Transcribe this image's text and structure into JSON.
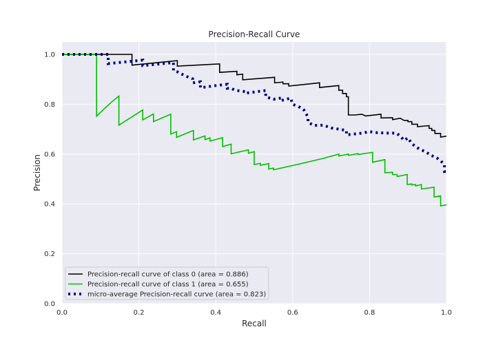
{
  "chart_data": {
    "type": "line",
    "title": "Precision-Recall Curve",
    "xlabel": "Recall",
    "ylabel": "Precision",
    "xlim": [
      0.0,
      1.0
    ],
    "ylim": [
      0.0,
      1.05
    ],
    "xticks": [
      "0.0",
      "0.2",
      "0.4",
      "0.6",
      "0.8",
      "1.0"
    ],
    "yticks": [
      "0.0",
      "0.2",
      "0.4",
      "0.6",
      "0.8",
      "1.0"
    ],
    "grid": true,
    "legend_position": "lower-left",
    "series": [
      {
        "name": "Precision-recall curve of class 0 (area = 0.886)",
        "color": "#000000",
        "style": "solid",
        "points": [
          [
            0,
            1.0
          ],
          [
            0.182,
            1.0
          ],
          [
            0.182,
            0.957
          ],
          [
            0.3,
            0.975
          ],
          [
            0.3,
            0.953
          ],
          [
            0.41,
            0.962
          ],
          [
            0.41,
            0.928
          ],
          [
            0.455,
            0.932
          ],
          [
            0.455,
            0.918
          ],
          [
            0.47,
            0.921
          ],
          [
            0.47,
            0.898
          ],
          [
            0.553,
            0.908
          ],
          [
            0.553,
            0.886
          ],
          [
            0.575,
            0.889
          ],
          [
            0.575,
            0.882
          ],
          [
            0.59,
            0.882
          ],
          [
            0.59,
            0.873
          ],
          [
            0.67,
            0.886
          ],
          [
            0.67,
            0.867
          ],
          [
            0.72,
            0.875
          ],
          [
            0.72,
            0.856
          ],
          [
            0.73,
            0.856
          ],
          [
            0.73,
            0.843
          ],
          [
            0.74,
            0.843
          ],
          [
            0.74,
            0.83
          ],
          [
            0.745,
            0.83
          ],
          [
            0.745,
            0.757
          ],
          [
            0.762,
            0.757
          ],
          [
            0.78,
            0.76
          ],
          [
            0.79,
            0.753
          ],
          [
            0.83,
            0.76
          ],
          [
            0.83,
            0.745
          ],
          [
            0.86,
            0.746
          ],
          [
            0.86,
            0.738
          ],
          [
            0.88,
            0.744
          ],
          [
            0.89,
            0.735
          ],
          [
            0.9,
            0.735
          ],
          [
            0.9,
            0.73
          ],
          [
            0.91,
            0.73
          ],
          [
            0.91,
            0.72
          ],
          [
            0.925,
            0.72
          ],
          [
            0.925,
            0.71
          ],
          [
            0.955,
            0.714
          ],
          [
            0.955,
            0.703
          ],
          [
            0.962,
            0.703
          ],
          [
            0.962,
            0.695
          ],
          [
            0.97,
            0.695
          ],
          [
            0.97,
            0.683
          ],
          [
            0.985,
            0.683
          ],
          [
            0.985,
            0.668
          ],
          [
            1.0,
            0.672
          ]
        ]
      },
      {
        "name": "Precision-recall curve of class 1 (area = 0.655)",
        "color": "#00bf00",
        "style": "solid",
        "points": [
          [
            0,
            1.0
          ],
          [
            0.09,
            1.0
          ],
          [
            0.09,
            0.752
          ],
          [
            0.11,
            0.782
          ],
          [
            0.13,
            0.81
          ],
          [
            0.148,
            0.833
          ],
          [
            0.148,
            0.716
          ],
          [
            0.21,
            0.777
          ],
          [
            0.21,
            0.737
          ],
          [
            0.238,
            0.761
          ],
          [
            0.238,
            0.73
          ],
          [
            0.283,
            0.76
          ],
          [
            0.283,
            0.68
          ],
          [
            0.298,
            0.69
          ],
          [
            0.298,
            0.667
          ],
          [
            0.342,
            0.695
          ],
          [
            0.342,
            0.657
          ],
          [
            0.372,
            0.673
          ],
          [
            0.372,
            0.658
          ],
          [
            0.385,
            0.665
          ],
          [
            0.385,
            0.652
          ],
          [
            0.418,
            0.666
          ],
          [
            0.418,
            0.63
          ],
          [
            0.44,
            0.64
          ],
          [
            0.44,
            0.601
          ],
          [
            0.485,
            0.617
          ],
          [
            0.485,
            0.603
          ],
          [
            0.5,
            0.61
          ],
          [
            0.5,
            0.558
          ],
          [
            0.516,
            0.563
          ],
          [
            0.516,
            0.555
          ],
          [
            0.538,
            0.562
          ],
          [
            0.538,
            0.54
          ],
          [
            0.55,
            0.544
          ],
          [
            0.55,
            0.537
          ],
          [
            0.62,
            0.561
          ],
          [
            0.68,
            0.583
          ],
          [
            0.72,
            0.6
          ],
          [
            0.72,
            0.592
          ],
          [
            0.745,
            0.6
          ],
          [
            0.745,
            0.595
          ],
          [
            0.77,
            0.602
          ],
          [
            0.77,
            0.598
          ],
          [
            0.808,
            0.607
          ],
          [
            0.808,
            0.567
          ],
          [
            0.84,
            0.578
          ],
          [
            0.84,
            0.525
          ],
          [
            0.86,
            0.527
          ],
          [
            0.86,
            0.518
          ],
          [
            0.872,
            0.518
          ],
          [
            0.872,
            0.51
          ],
          [
            0.898,
            0.518
          ],
          [
            0.898,
            0.478
          ],
          [
            0.91,
            0.48
          ],
          [
            0.91,
            0.476
          ],
          [
            0.92,
            0.478
          ],
          [
            0.92,
            0.472
          ],
          [
            0.935,
            0.478
          ],
          [
            0.935,
            0.46
          ],
          [
            0.968,
            0.467
          ],
          [
            0.968,
            0.428
          ],
          [
            0.985,
            0.432
          ],
          [
            0.985,
            0.392
          ],
          [
            1.0,
            0.396
          ]
        ]
      },
      {
        "name": "micro-average Precision-recall curve (area = 0.823)",
        "color": "#000080",
        "style": "dotted",
        "points": [
          [
            0,
            1.0
          ],
          [
            0.12,
            1.0
          ],
          [
            0.12,
            0.963
          ],
          [
            0.21,
            0.977
          ],
          [
            0.21,
            0.955
          ],
          [
            0.29,
            0.967
          ],
          [
            0.29,
            0.935
          ],
          [
            0.3,
            0.93
          ],
          [
            0.32,
            0.914
          ],
          [
            0.34,
            0.902
          ],
          [
            0.34,
            0.886
          ],
          [
            0.36,
            0.89
          ],
          [
            0.36,
            0.866
          ],
          [
            0.4,
            0.875
          ],
          [
            0.43,
            0.88
          ],
          [
            0.43,
            0.864
          ],
          [
            0.44,
            0.864
          ],
          [
            0.45,
            0.856
          ],
          [
            0.48,
            0.85
          ],
          [
            0.48,
            0.845
          ],
          [
            0.53,
            0.855
          ],
          [
            0.53,
            0.83
          ],
          [
            0.55,
            0.82
          ],
          [
            0.57,
            0.825
          ],
          [
            0.57,
            0.815
          ],
          [
            0.595,
            0.825
          ],
          [
            0.6,
            0.8
          ],
          [
            0.62,
            0.787
          ],
          [
            0.63,
            0.776
          ],
          [
            0.64,
            0.748
          ],
          [
            0.64,
            0.728
          ],
          [
            0.655,
            0.715
          ],
          [
            0.68,
            0.716
          ],
          [
            0.7,
            0.705
          ],
          [
            0.74,
            0.695
          ],
          [
            0.74,
            0.677
          ],
          [
            0.78,
            0.684
          ],
          [
            0.8,
            0.69
          ],
          [
            0.8,
            0.69
          ],
          [
            0.82,
            0.686
          ],
          [
            0.85,
            0.684
          ],
          [
            0.87,
            0.684
          ],
          [
            0.88,
            0.672
          ],
          [
            0.89,
            0.655
          ],
          [
            0.9,
            0.665
          ],
          [
            0.91,
            0.642
          ],
          [
            0.92,
            0.63
          ],
          [
            0.93,
            0.62
          ],
          [
            0.945,
            0.61
          ],
          [
            0.96,
            0.595
          ],
          [
            0.975,
            0.585
          ],
          [
            0.985,
            0.573
          ],
          [
            0.995,
            0.558
          ],
          [
            0.995,
            0.53
          ],
          [
            1.0,
            0.53
          ]
        ]
      }
    ]
  }
}
